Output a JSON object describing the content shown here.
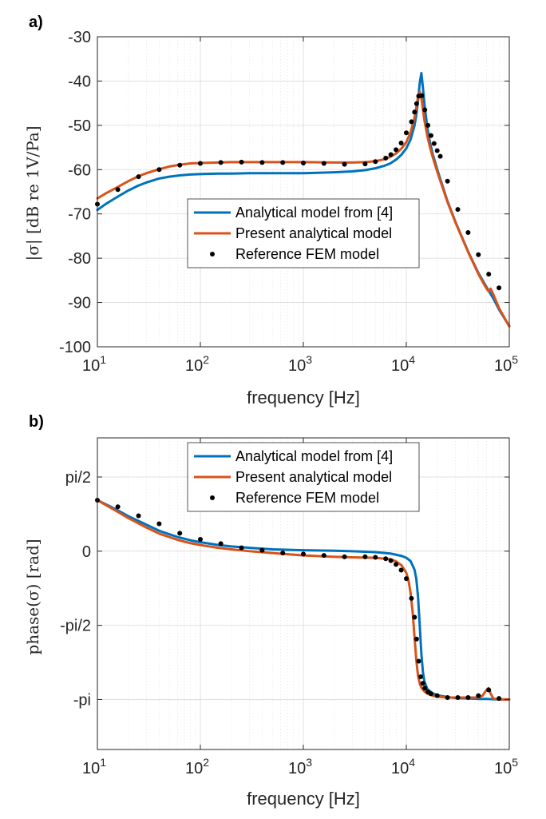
{
  "chart_data": [
    {
      "type": "line",
      "panel_label": "a)",
      "xlabel": "frequency [Hz]",
      "ylabel": "|σ| [dB re 1V/Pa]",
      "xscale": "log",
      "xlim": [
        10,
        100000
      ],
      "ylim": [
        -100,
        -30
      ],
      "xticks": [
        10,
        100,
        1000,
        10000,
        100000
      ],
      "xtick_labels": [
        {
          "base": "10",
          "exp": "1"
        },
        {
          "base": "10",
          "exp": "2"
        },
        {
          "base": "10",
          "exp": "3"
        },
        {
          "base": "10",
          "exp": "4"
        },
        {
          "base": "10",
          "exp": "5"
        }
      ],
      "yticks": [
        -100,
        -90,
        -80,
        -70,
        -60,
        -50,
        -40,
        -30
      ],
      "ytick_labels": [
        "-100",
        "-90",
        "-80",
        "-70",
        "-60",
        "-50",
        "-40",
        "-30"
      ],
      "grid": true,
      "legend_position": "center",
      "series": [
        {
          "name": "Analytical model from [4]",
          "style": "line",
          "color": "#0072BD",
          "x": [
            10,
            12,
            15,
            20,
            25,
            30,
            40,
            50,
            63,
            80,
            100,
            150,
            200,
            300,
            500,
            1000,
            2000,
            3000,
            4000,
            5000,
            6000,
            7000,
            8000,
            9000,
            10000,
            11000,
            12000,
            12500,
            13000,
            13500,
            14000,
            14500,
            15000,
            16000,
            17000,
            18000,
            20000,
            25000,
            30000,
            40000,
            50000,
            60000,
            70000,
            80000,
            90000,
            100000
          ],
          "y": [
            -69.1,
            -67.8,
            -66.4,
            -64.7,
            -63.6,
            -62.9,
            -62.0,
            -61.6,
            -61.3,
            -61.1,
            -61.0,
            -60.9,
            -60.9,
            -60.8,
            -60.8,
            -60.8,
            -60.6,
            -60.4,
            -60.1,
            -59.7,
            -59.2,
            -58.6,
            -57.7,
            -56.6,
            -55.2,
            -53.2,
            -50.1,
            -47.7,
            -44.4,
            -40.5,
            -38.2,
            -41.5,
            -45.2,
            -50.6,
            -53.9,
            -56.4,
            -60.0,
            -67.0,
            -71.8,
            -78.6,
            -83.3,
            -86.5,
            -89.1,
            -91.7,
            -93.6,
            -95.3
          ]
        },
        {
          "name": "Present analytical model",
          "style": "line",
          "color": "#D95319",
          "x": [
            10,
            12,
            15,
            20,
            25,
            30,
            40,
            50,
            63,
            80,
            100,
            150,
            200,
            300,
            500,
            1000,
            2000,
            3000,
            4000,
            5000,
            6000,
            7000,
            8000,
            9000,
            10000,
            11000,
            12000,
            12500,
            13000,
            13500,
            14000,
            14500,
            15000,
            16000,
            17000,
            18000,
            20000,
            25000,
            30000,
            40000,
            50000,
            55000,
            60000,
            63000,
            66000,
            70000,
            80000,
            90000,
            100000
          ],
          "y": [
            -66.5,
            -65.4,
            -64.2,
            -62.6,
            -61.5,
            -60.8,
            -59.9,
            -59.3,
            -58.9,
            -58.6,
            -58.5,
            -58.4,
            -58.3,
            -58.3,
            -58.3,
            -58.3,
            -58.4,
            -58.4,
            -58.3,
            -58.1,
            -57.7,
            -57.1,
            -56.3,
            -55.2,
            -53.8,
            -51.6,
            -48.3,
            -46.0,
            -43.6,
            -42.4,
            -43.8,
            -46.4,
            -48.9,
            -52.4,
            -55.0,
            -57.1,
            -60.5,
            -67.2,
            -71.9,
            -78.7,
            -83.5,
            -85.3,
            -86.8,
            -87.5,
            -86.9,
            -88.2,
            -91.4,
            -93.5,
            -95.4
          ]
        },
        {
          "name": "Reference FEM model",
          "style": "markers",
          "color": "#000000",
          "x": [
            10,
            15.8,
            25.1,
            39.8,
            63.1,
            100,
            158,
            251,
            398,
            631,
            1000,
            1585,
            2512,
            3981,
            5012,
            6310,
            7079,
            7943,
            8913,
            10000,
            11220,
            12023,
            12589,
            13183,
            14125,
            15136,
            16218,
            17378,
            18621,
            19953,
            21380,
            25119,
            31623,
            39811,
            50119,
            63096,
            79433
          ],
          "y": [
            -67.8,
            -64.5,
            -61.6,
            -60.0,
            -59.0,
            -58.6,
            -58.4,
            -58.3,
            -58.4,
            -58.4,
            -58.5,
            -58.6,
            -58.8,
            -58.7,
            -58.2,
            -57.4,
            -56.6,
            -55.5,
            -54.0,
            -51.7,
            -49.2,
            -47.0,
            -45.1,
            -43.4,
            -43.3,
            -46.5,
            -50.0,
            -52.3,
            -54.1,
            -55.7,
            -57.0,
            -62.6,
            -69.0,
            -74.2,
            -79.2,
            -83.6,
            -86.7
          ]
        }
      ]
    },
    {
      "type": "line",
      "panel_label": "b)",
      "xlabel": "frequency [Hz]",
      "ylabel": "phase(σ) [rad]",
      "xscale": "log",
      "xlim": [
        10,
        100000
      ],
      "ylim": [
        -4.2,
        2.4
      ],
      "xticks": [
        10,
        100,
        1000,
        10000,
        100000
      ],
      "xtick_labels": [
        {
          "base": "10",
          "exp": "1"
        },
        {
          "base": "10",
          "exp": "2"
        },
        {
          "base": "10",
          "exp": "3"
        },
        {
          "base": "10",
          "exp": "4"
        },
        {
          "base": "10",
          "exp": "5"
        }
      ],
      "yticks": [
        -3.1416,
        -1.5708,
        0,
        1.5708
      ],
      "ytick_labels": [
        "-pi",
        "-pi/2",
        "0",
        "pi/2"
      ],
      "grid": true,
      "legend_position": "top-center",
      "series": [
        {
          "name": "Analytical model from [4]",
          "style": "line",
          "color": "#0072BD",
          "x": [
            10,
            15,
            20,
            30,
            40,
            60,
            80,
            100,
            150,
            200,
            300,
            500,
            1000,
            2000,
            3000,
            5000,
            7000,
            9000,
            10000,
            11000,
            12000,
            12500,
            13000,
            13500,
            14000,
            14500,
            15000,
            16000,
            18000,
            20000,
            25000,
            30000,
            40000,
            50000,
            60000,
            80000,
            100000
          ],
          "y": [
            1.08,
            0.89,
            0.74,
            0.56,
            0.43,
            0.3,
            0.23,
            0.19,
            0.13,
            0.1,
            0.07,
            0.04,
            0.02,
            0.01,
            0.0,
            -0.02,
            -0.05,
            -0.1,
            -0.14,
            -0.21,
            -0.39,
            -0.58,
            -0.97,
            -1.57,
            -2.17,
            -2.56,
            -2.76,
            -2.92,
            -3.01,
            -3.05,
            -3.09,
            -3.11,
            -3.12,
            -3.13,
            -3.13,
            -3.14,
            -3.14
          ]
        },
        {
          "name": "Present analytical model",
          "style": "line",
          "color": "#D95319",
          "x": [
            10,
            15,
            20,
            30,
            40,
            60,
            80,
            100,
            150,
            200,
            300,
            500,
            1000,
            2000,
            3000,
            5000,
            7000,
            8000,
            9000,
            10000,
            10500,
            11000,
            11500,
            12000,
            12500,
            13000,
            13500,
            14000,
            15000,
            16000,
            18000,
            20000,
            25000,
            30000,
            40000,
            50000,
            55000,
            60000,
            63000,
            66000,
            70000,
            80000,
            100000
          ],
          "y": [
            1.08,
            0.86,
            0.7,
            0.5,
            0.37,
            0.24,
            0.17,
            0.13,
            0.07,
            0.04,
            0.0,
            -0.04,
            -0.09,
            -0.12,
            -0.13,
            -0.14,
            -0.17,
            -0.22,
            -0.3,
            -0.46,
            -0.62,
            -0.88,
            -1.27,
            -1.8,
            -2.3,
            -2.64,
            -2.8,
            -2.89,
            -2.97,
            -3.02,
            -3.06,
            -3.08,
            -3.1,
            -3.1,
            -3.1,
            -3.1,
            -3.06,
            -2.94,
            -2.9,
            -3.02,
            -3.12,
            -3.14,
            -3.14
          ]
        },
        {
          "name": "Reference FEM model",
          "style": "markers",
          "color": "#000000",
          "x": [
            10,
            15.8,
            25.1,
            39.8,
            63.1,
            100,
            158,
            251,
            398,
            631,
            1000,
            1585,
            2512,
            3981,
            5012,
            6310,
            7079,
            7943,
            8913,
            10000,
            11220,
            12023,
            12589,
            13183,
            13804,
            14454,
            15136,
            16218,
            17378,
            19953,
            25119,
            31623,
            39811,
            50119,
            63096,
            79433
          ],
          "y": [
            1.08,
            0.94,
            0.75,
            0.58,
            0.38,
            0.25,
            0.16,
            0.07,
            0.02,
            -0.04,
            -0.06,
            -0.09,
            -0.12,
            -0.12,
            -0.13,
            -0.16,
            -0.2,
            -0.28,
            -0.4,
            -0.58,
            -1.0,
            -1.4,
            -1.86,
            -2.33,
            -2.66,
            -2.8,
            -2.9,
            -2.98,
            -3.02,
            -3.06,
            -3.1,
            -3.1,
            -3.1,
            -3.06,
            -2.94,
            -3.12
          ]
        }
      ]
    }
  ]
}
